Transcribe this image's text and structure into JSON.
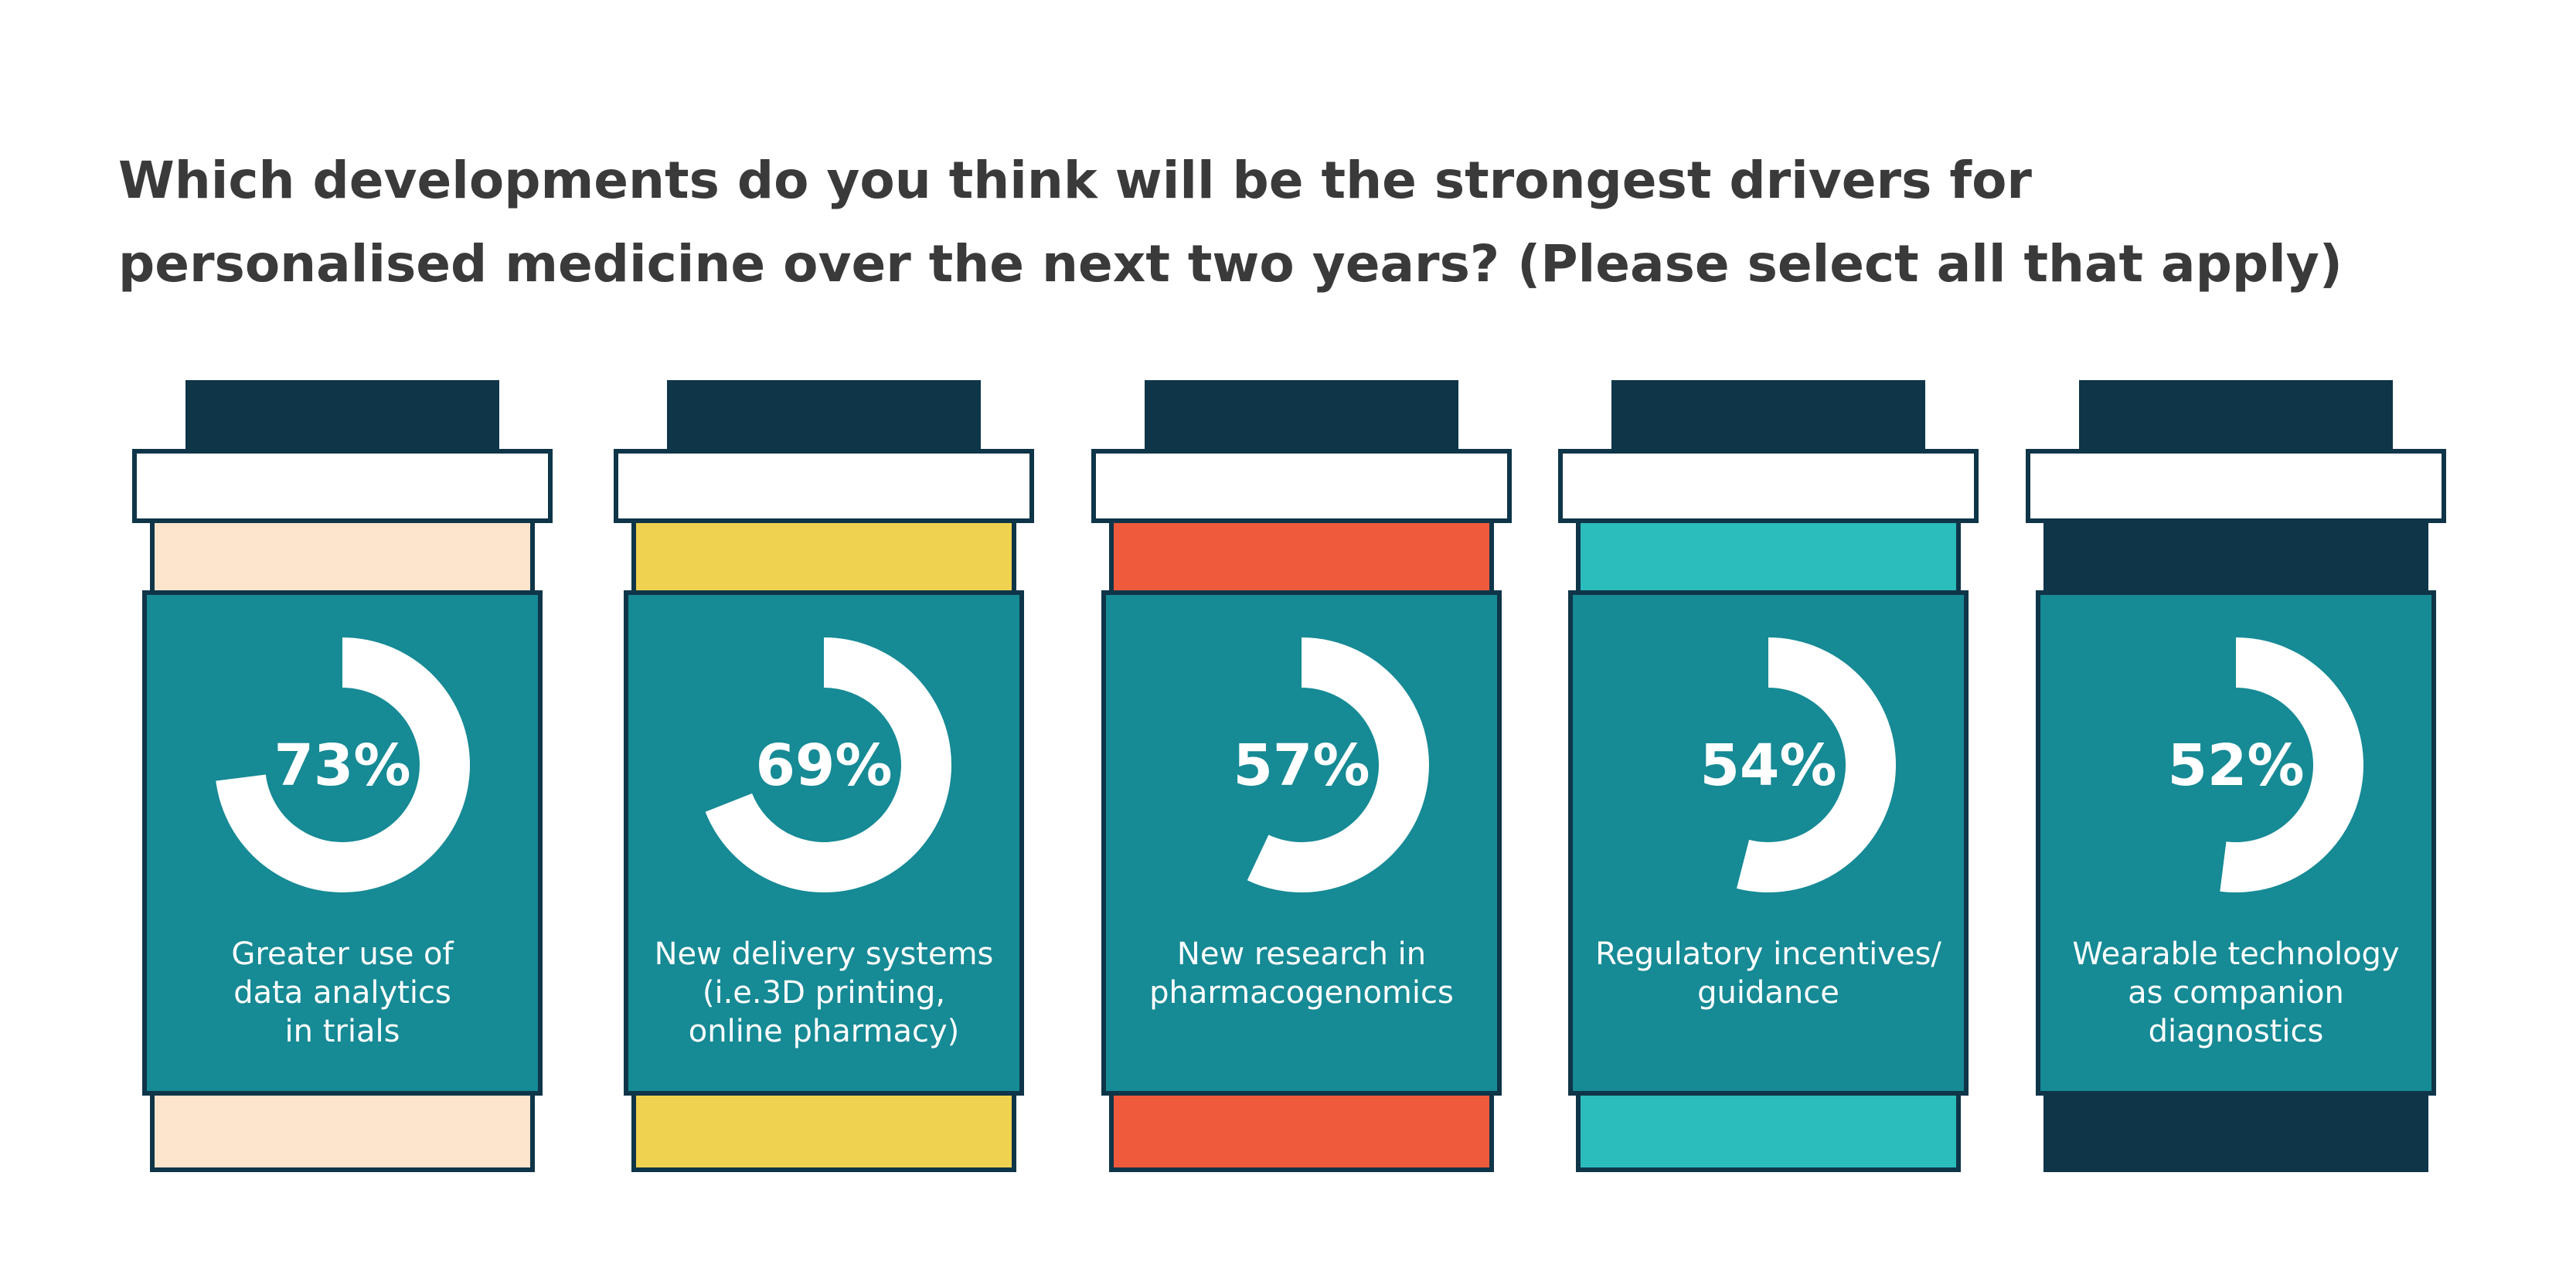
{
  "title": {
    "line1": "Which developments do you think will be the strongest drivers for",
    "line2": "personalised medicine over the next two years? (Please select all that apply)"
  },
  "colors": {
    "outline": "#0f3548",
    "label_panel": "#168a95",
    "cap_band": "#ffffff",
    "ring": "#ffffff"
  },
  "chart_data": {
    "type": "bar",
    "title": "Which developments do you think will be the strongest drivers for personalised medicine over the next two years? (Please select all that apply)",
    "unit": "%",
    "categories": [
      "Greater use of data analytics in trials",
      "New delivery systems (i.e.3D printing, online pharmacy)",
      "New research in pharmacogenomics",
      "Regulatory incentives/ guidance",
      "Wearable technology as companion diagnostics"
    ],
    "values": [
      73,
      69,
      57,
      54,
      52
    ],
    "items": [
      {
        "value": 73,
        "value_label": "73%",
        "label_lines": [
          "Greater use of",
          "data analytics",
          "in trials"
        ],
        "color": "#fde4cc"
      },
      {
        "value": 69,
        "value_label": "69%",
        "label_lines": [
          "New delivery systems",
          "(i.e.3D printing,",
          "online pharmacy)"
        ],
        "color": "#efd24f"
      },
      {
        "value": 57,
        "value_label": "57%",
        "label_lines": [
          "New research in",
          "pharmacogenomics"
        ],
        "color": "#f05a3c"
      },
      {
        "value": 54,
        "value_label": "54%",
        "label_lines": [
          "Regulatory incentives/",
          "guidance"
        ],
        "color": "#2bbcbc"
      },
      {
        "value": 52,
        "value_label": "52%",
        "label_lines": [
          "Wearable technology",
          "as companion",
          "diagnostics"
        ],
        "color": "#0f3548"
      }
    ]
  }
}
